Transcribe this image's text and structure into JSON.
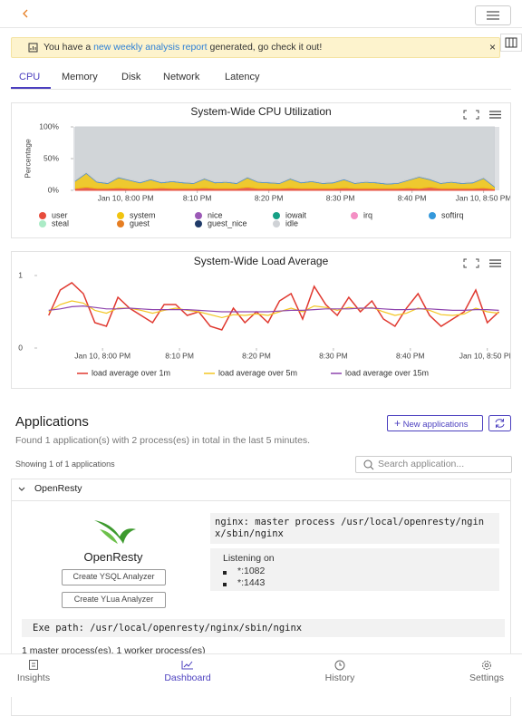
{
  "banner": {
    "prefix": "You have a",
    "link": "new weekly analysis report",
    "suffix": "generated, go check it out!"
  },
  "tabs": [
    "CPU",
    "Memory",
    "Disk",
    "Network",
    "Latency"
  ],
  "chart_data": [
    {
      "type": "area",
      "stacked": true,
      "title": "System-Wide CPU Utilization",
      "y_label": "Percentage",
      "x": [
        -7,
        -5.5,
        -4,
        -2.5,
        -1,
        0.5,
        2,
        3.5,
        5,
        6.5,
        8,
        9.5,
        11,
        12.5,
        14,
        15.5,
        17,
        18.5,
        20,
        21.5,
        23,
        24.5,
        26,
        27.5,
        29,
        30.5,
        32,
        33.5,
        35,
        36.5,
        38,
        39.5,
        41,
        42.5,
        44,
        45.5,
        47,
        48.5,
        50,
        51.5
      ],
      "xlim": [
        -7.3,
        52.2
      ],
      "xticks": [
        {
          "value": 0,
          "label": "Jan 10, 8:00 PM"
        },
        {
          "value": 10,
          "label": "8:10 PM"
        },
        {
          "value": 20,
          "label": "8:20 PM"
        },
        {
          "value": 30,
          "label": "8:30 PM"
        },
        {
          "value": 40,
          "label": "8:40 PM"
        },
        {
          "value": 50,
          "label": "Jan 10, 8:50 PM"
        }
      ],
      "ylim": [
        0,
        100
      ],
      "yticks": [
        {
          "value": 0,
          "label": "0%"
        },
        {
          "value": 50,
          "label": "50%"
        },
        {
          "value": 100,
          "label": "100%"
        }
      ],
      "series": [
        {
          "name": "user",
          "color": "#e74c3c",
          "values": [
            3,
            5,
            3,
            3,
            4,
            3,
            3,
            3,
            4,
            3,
            3,
            3,
            4,
            3,
            3,
            3,
            5,
            3,
            3,
            3,
            4,
            3,
            3,
            3,
            3,
            4,
            3,
            3,
            3,
            3,
            3,
            4,
            3,
            5,
            3,
            3,
            3,
            3,
            4,
            2
          ]
        },
        {
          "name": "system",
          "color": "#f1c40f",
          "values": [
            12,
            22,
            10,
            8,
            16,
            13,
            9,
            14,
            8,
            11,
            9,
            8,
            14,
            9,
            10,
            8,
            15,
            10,
            9,
            8,
            14,
            9,
            11,
            8,
            9,
            13,
            8,
            10,
            9,
            7,
            8,
            12,
            18,
            12,
            8,
            10,
            8,
            9,
            15,
            4
          ]
        },
        {
          "name": "nice",
          "color": "#9b59b6",
          "values": [
            0,
            0,
            0,
            0,
            0,
            0,
            0,
            0,
            0,
            0,
            0,
            0,
            0,
            0,
            0,
            0,
            0,
            0,
            0,
            0,
            0,
            0,
            0,
            0,
            0,
            0,
            0,
            0,
            0,
            0,
            0,
            0,
            0,
            0,
            0,
            0,
            0,
            0,
            0,
            0
          ]
        },
        {
          "name": "iowait",
          "color": "#16a085",
          "values": [
            0,
            0,
            0,
            0,
            0,
            0,
            0,
            0,
            0,
            0,
            0,
            0,
            0,
            0,
            0,
            0,
            0,
            0,
            0,
            0,
            0,
            0,
            0,
            0,
            0,
            0,
            0,
            0,
            0,
            0,
            0,
            0,
            0,
            0,
            0,
            0,
            0,
            0,
            0,
            0
          ]
        },
        {
          "name": "irq",
          "color": "#f48fc4",
          "values": [
            0,
            0,
            0,
            0,
            0,
            0,
            0,
            0,
            0,
            0,
            0,
            0,
            0,
            0,
            0,
            0,
            0,
            0,
            0,
            0,
            0,
            0,
            0,
            0,
            0,
            0,
            0,
            0,
            0,
            0,
            0,
            0,
            0,
            0,
            0,
            0,
            0,
            0,
            0,
            0
          ]
        },
        {
          "name": "softirq",
          "color": "#3498db",
          "values": [
            1,
            1,
            1,
            1,
            1,
            1,
            1,
            1,
            1,
            1,
            1,
            1,
            1,
            1,
            1,
            1,
            1,
            1,
            1,
            1,
            1,
            1,
            1,
            1,
            1,
            1,
            1,
            1,
            1,
            1,
            1,
            1,
            1,
            1,
            1,
            1,
            1,
            1,
            1,
            1
          ]
        },
        {
          "name": "steal",
          "color": "#abebc6",
          "values": [
            0,
            0,
            0,
            0,
            0,
            0,
            0,
            0,
            0,
            0,
            0,
            0,
            0,
            0,
            0,
            0,
            0,
            0,
            0,
            0,
            0,
            0,
            0,
            0,
            0,
            0,
            0,
            0,
            0,
            0,
            0,
            0,
            0,
            0,
            0,
            0,
            0,
            0,
            0,
            0
          ]
        },
        {
          "name": "guest",
          "color": "#e67e22",
          "values": [
            0,
            0,
            0,
            0,
            0,
            0,
            0,
            0,
            0,
            0,
            0,
            0,
            0,
            0,
            0,
            0,
            0,
            0,
            0,
            0,
            0,
            0,
            0,
            0,
            0,
            0,
            0,
            0,
            0,
            0,
            0,
            0,
            0,
            0,
            0,
            0,
            0,
            0,
            0,
            0
          ]
        },
        {
          "name": "guest_nice",
          "color": "#1f3a68",
          "values": [
            0,
            0,
            0,
            0,
            0,
            0,
            0,
            0,
            0,
            0,
            0,
            0,
            0,
            0,
            0,
            0,
            0,
            0,
            0,
            0,
            0,
            0,
            0,
            0,
            0,
            0,
            0,
            0,
            0,
            0,
            0,
            0,
            0,
            0,
            0,
            0,
            0,
            0,
            0,
            0
          ]
        },
        {
          "name": "idle",
          "color": "#cfd2d6",
          "values": [
            84,
            72,
            86,
            88,
            79,
            83,
            87,
            82,
            87,
            85,
            87,
            88,
            81,
            87,
            86,
            88,
            79,
            86,
            87,
            88,
            81,
            87,
            85,
            88,
            87,
            82,
            88,
            86,
            87,
            89,
            88,
            83,
            78,
            82,
            88,
            86,
            88,
            87,
            80,
            93
          ]
        }
      ]
    },
    {
      "type": "line",
      "title": "System-Wide Load Average",
      "x": [
        -7,
        -5.5,
        -4,
        -2.5,
        -1,
        0.5,
        2,
        3.5,
        5,
        6.5,
        8,
        9.5,
        11,
        12.5,
        14,
        15.5,
        17,
        18.5,
        20,
        21.5,
        23,
        24.5,
        26,
        27.5,
        29,
        30.5,
        32,
        33.5,
        35,
        36.5,
        38,
        39.5,
        41,
        42.5,
        44,
        45.5,
        47,
        48.5,
        50,
        51.5
      ],
      "xlim": [
        -8.5,
        51.8
      ],
      "xticks": [
        {
          "value": 0,
          "label": "Jan 10, 8:00 PM"
        },
        {
          "value": 10,
          "label": "8:10 PM"
        },
        {
          "value": 20,
          "label": "8:20 PM"
        },
        {
          "value": 30,
          "label": "8:30 PM"
        },
        {
          "value": 40,
          "label": "8:40 PM"
        },
        {
          "value": 50,
          "label": "Jan 10, 8:50 PM"
        }
      ],
      "ylim": [
        0,
        1.1
      ],
      "yticks": [
        0,
        1
      ],
      "series": [
        {
          "name": "load average over 1m",
          "color": "#e0382f",
          "values": [
            0.45,
            0.8,
            0.9,
            0.75,
            0.35,
            0.3,
            0.7,
            0.55,
            0.45,
            0.35,
            0.6,
            0.6,
            0.45,
            0.5,
            0.3,
            0.25,
            0.55,
            0.35,
            0.5,
            0.35,
            0.65,
            0.75,
            0.4,
            0.85,
            0.6,
            0.45,
            0.7,
            0.5,
            0.65,
            0.4,
            0.3,
            0.55,
            0.75,
            0.45,
            0.3,
            0.4,
            0.5,
            0.8,
            0.35,
            0.5
          ]
        },
        {
          "name": "load average over 5m",
          "color": "#f3c623",
          "values": [
            0.5,
            0.6,
            0.65,
            0.62,
            0.52,
            0.48,
            0.55,
            0.55,
            0.52,
            0.48,
            0.52,
            0.55,
            0.52,
            0.5,
            0.46,
            0.42,
            0.46,
            0.45,
            0.47,
            0.45,
            0.5,
            0.55,
            0.5,
            0.58,
            0.56,
            0.52,
            0.56,
            0.54,
            0.56,
            0.5,
            0.45,
            0.48,
            0.55,
            0.52,
            0.46,
            0.45,
            0.47,
            0.55,
            0.5,
            0.48
          ]
        },
        {
          "name": "load average over 15m",
          "color": "#8e44ad",
          "values": [
            0.52,
            0.54,
            0.57,
            0.58,
            0.56,
            0.54,
            0.54,
            0.55,
            0.54,
            0.53,
            0.53,
            0.53,
            0.53,
            0.52,
            0.51,
            0.5,
            0.5,
            0.5,
            0.5,
            0.5,
            0.51,
            0.52,
            0.52,
            0.53,
            0.54,
            0.54,
            0.54,
            0.55,
            0.55,
            0.54,
            0.53,
            0.53,
            0.54,
            0.54,
            0.53,
            0.52,
            0.52,
            0.53,
            0.53,
            0.52
          ]
        }
      ]
    }
  ],
  "applications": {
    "title": "Applications",
    "new_button": "New applications",
    "summary": "Found 1 application(s) with 2 process(es) in total in the last 5 minutes.",
    "showing": "Showing 1 of 1 applications",
    "search": "Search application...",
    "app": {
      "name": "OpenResty",
      "logo_label": "OpenResty",
      "buttons": [
        "Create YSQL Analyzer",
        "Create YLua Analyzer"
      ],
      "process": "nginx: master process /usr/local/openresty/nginx/sbin/nginx",
      "listening": "Listening on",
      "ports": [
        "*:1082",
        "*:1443"
      ],
      "exe": "Exe path: /usr/local/openresty/nginx/sbin/nginx",
      "processes": "1 master process(es), 1 worker process(es)"
    }
  },
  "nav": [
    "Insights",
    "Dashboard",
    "History",
    "Settings"
  ]
}
